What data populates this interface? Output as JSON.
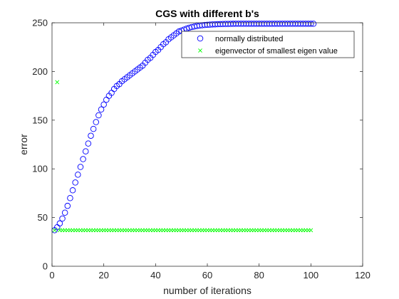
{
  "chart_data": {
    "type": "scatter",
    "title": "CGS with different b's",
    "xlabel": "number of iterations",
    "ylabel": "error",
    "xlim": [
      0,
      120
    ],
    "ylim": [
      0,
      250
    ],
    "xticks": [
      0,
      20,
      40,
      60,
      80,
      100,
      120
    ],
    "yticks": [
      0,
      50,
      100,
      150,
      200,
      250
    ],
    "grid": false,
    "legend_position": "top-right",
    "series": [
      {
        "name": "normally distributed",
        "marker": "circle",
        "color": "#0000ff",
        "x": [
          1,
          2,
          3,
          4,
          5,
          6,
          7,
          8,
          9,
          10,
          11,
          12,
          13,
          14,
          15,
          16,
          17,
          18,
          19,
          20,
          21,
          22,
          23,
          24,
          25,
          26,
          27,
          28,
          29,
          30,
          31,
          32,
          33,
          34,
          35,
          36,
          37,
          38,
          39,
          40,
          41,
          42,
          43,
          44,
          45,
          46,
          47,
          48,
          49,
          50,
          51,
          52,
          53,
          54,
          55,
          56,
          57,
          58,
          59,
          60,
          61,
          62,
          63,
          64,
          65,
          66,
          67,
          68,
          69,
          70,
          71,
          72,
          73,
          74,
          75,
          76,
          77,
          78,
          79,
          80,
          81,
          82,
          83,
          84,
          85,
          86,
          87,
          88,
          89,
          90,
          91,
          92,
          93,
          94,
          95,
          96,
          97,
          98,
          99,
          100,
          101
        ],
        "y": [
          37,
          40,
          44,
          49,
          55,
          62,
          70,
          78,
          86,
          94,
          102,
          110,
          118,
          126,
          134,
          141,
          148,
          155,
          161,
          166,
          171,
          175,
          178,
          182,
          185,
          187,
          190,
          192,
          194,
          196,
          198,
          200,
          202,
          204,
          206,
          209,
          212,
          214,
          217,
          220,
          222,
          225,
          228,
          230,
          233,
          235,
          237,
          239,
          241,
          242,
          243,
          244,
          244.9,
          245.6,
          246.2,
          246.7,
          247.1,
          247.4,
          247.7,
          247.9,
          248.1,
          248.3,
          248.4,
          248.5,
          248.6,
          248.7,
          248.8,
          248.85,
          248.9,
          248.95,
          249,
          249,
          249,
          249,
          249,
          249,
          249,
          249,
          249,
          249,
          249,
          249,
          249,
          249,
          249,
          249,
          249,
          249,
          249,
          249,
          249,
          249,
          249,
          249,
          249,
          249,
          249,
          249,
          249,
          249,
          249
        ]
      },
      {
        "name": "eigenvector of smallest eigen value",
        "marker": "x",
        "color": "#00ff00",
        "x": [
          1,
          2,
          3,
          4,
          5,
          6,
          7,
          8,
          9,
          10,
          11,
          12,
          13,
          14,
          15,
          16,
          17,
          18,
          19,
          20,
          21,
          22,
          23,
          24,
          25,
          26,
          27,
          28,
          29,
          30,
          31,
          32,
          33,
          34,
          35,
          36,
          37,
          38,
          39,
          40,
          41,
          42,
          43,
          44,
          45,
          46,
          47,
          48,
          49,
          50,
          51,
          52,
          53,
          54,
          55,
          56,
          57,
          58,
          59,
          60,
          61,
          62,
          63,
          64,
          65,
          66,
          67,
          68,
          69,
          70,
          71,
          72,
          73,
          74,
          75,
          76,
          77,
          78,
          79,
          80,
          81,
          82,
          83,
          84,
          85,
          86,
          87,
          88,
          89,
          90,
          91,
          92,
          93,
          94,
          95,
          96,
          97,
          98,
          99,
          100
        ],
        "y": [
          37,
          189,
          37,
          37,
          37,
          37,
          37,
          37,
          37,
          37,
          37,
          37,
          37,
          37,
          37,
          37,
          37,
          37,
          37,
          37,
          37,
          37,
          37,
          37,
          37,
          37,
          37,
          37,
          37,
          37,
          37,
          37,
          37,
          37,
          37,
          37,
          37,
          37,
          37,
          37,
          37,
          37,
          37,
          37,
          37,
          37,
          37,
          37,
          37,
          37,
          37,
          37,
          37,
          37,
          37,
          37,
          37,
          37,
          37,
          37,
          37,
          37,
          37,
          37,
          37,
          37,
          37,
          37,
          37,
          37,
          37,
          37,
          37,
          37,
          37,
          37,
          37,
          37,
          37,
          37,
          37,
          37,
          37,
          37,
          37,
          37,
          37,
          37,
          37,
          37,
          37,
          37,
          37,
          37,
          37,
          37,
          37,
          37,
          37,
          37
        ]
      }
    ]
  }
}
